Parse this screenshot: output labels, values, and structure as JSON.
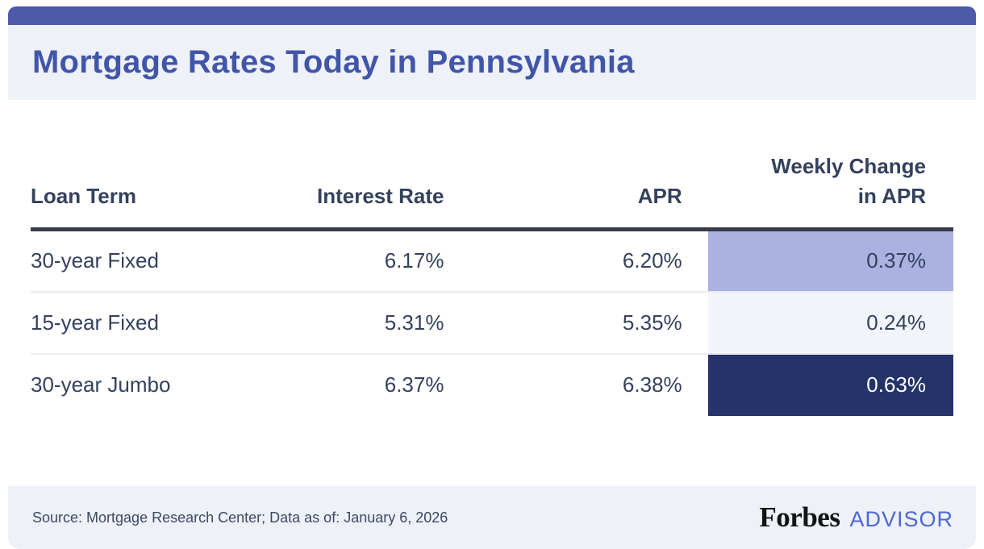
{
  "header": {
    "title": "Mortgage Rates Today in Pennsylvania"
  },
  "table": {
    "columns": [
      "Loan Term",
      "Interest Rate",
      "APR",
      "Weekly Change in APR"
    ],
    "rows": [
      {
        "loan_term": "30-year Fixed",
        "interest_rate": "6.17%",
        "apr": "6.20%",
        "weekly_change": "0.37%",
        "weekly_change_bg": "#a9b2e1",
        "weekly_change_fg": "#34415c"
      },
      {
        "loan_term": "15-year Fixed",
        "interest_rate": "5.31%",
        "apr": "5.35%",
        "weekly_change": "0.24%",
        "weekly_change_bg": "#f2f4fb",
        "weekly_change_fg": "#34415c"
      },
      {
        "loan_term": "30-year Jumbo",
        "interest_rate": "6.37%",
        "apr": "6.38%",
        "weekly_change": "0.63%",
        "weekly_change_bg": "#243369",
        "weekly_change_fg": "#ffffff"
      }
    ]
  },
  "footer": {
    "source_text": "Source: Mortgage Research Center; Data as of: January 6, 2026",
    "brand_name": "Forbes",
    "brand_suffix": "ADVISOR"
  },
  "colors": {
    "top_bar": "#4c5aa9",
    "band_background": "#eef1f8",
    "title_text": "#4156a8",
    "table_text": "#34415c",
    "header_rule": "#363b45",
    "row_divider": "#ebebf0",
    "weekly_change_light": "#a9b2e1",
    "weekly_change_pale": "#f2f4fb",
    "weekly_change_dark": "#243369",
    "advisor_text": "#4c67da"
  },
  "chart_data": {
    "type": "table",
    "title": "Mortgage Rates Today in Pennsylvania",
    "columns": [
      "Loan Term",
      "Interest Rate",
      "APR",
      "Weekly Change in APR"
    ],
    "rows": [
      [
        "30-year Fixed",
        "6.17%",
        "6.20%",
        "0.37%"
      ],
      [
        "15-year Fixed",
        "5.31%",
        "5.35%",
        "0.24%"
      ],
      [
        "30-year Jumbo",
        "6.37%",
        "6.38%",
        "0.63%"
      ]
    ],
    "source": "Source: Mortgage Research Center; Data as of: January 6, 2026",
    "highlight_note": "Weekly Change in APR column cells shaded by magnitude: 0.37% light periwinkle, 0.24% pale blue, 0.63% dark navy with white text"
  }
}
